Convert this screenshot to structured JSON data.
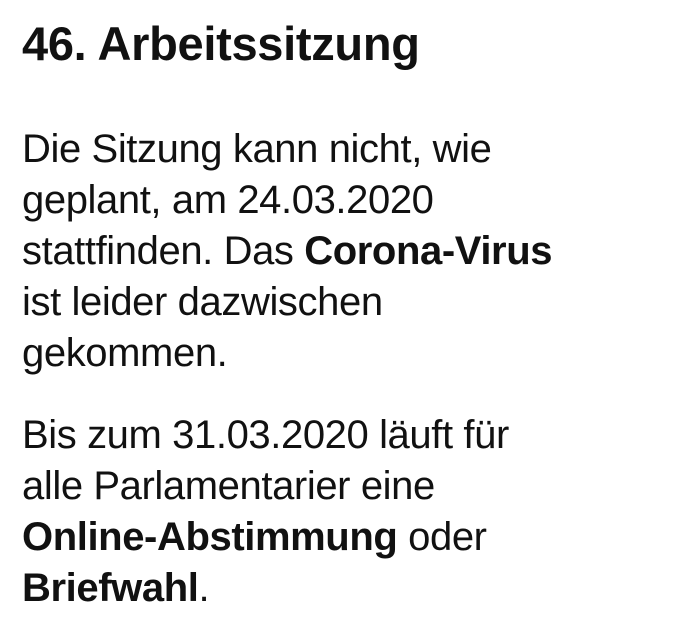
{
  "title": "46. Arbeitssitzung",
  "paragraph1": {
    "l1": "Die Sitzung kann nicht, wie",
    "l2": "geplant, am 24.03.2020",
    "l3a": "stattfinden. Das ",
    "l3b": "Corona-Virus",
    "l4": "ist leider dazwischen",
    "l5": "gekommen."
  },
  "paragraph2": {
    "l1": "Bis zum 31.03.2020 läuft für",
    "l2": "alle Parlamentarier eine",
    "l3a": "Online-Abstimmung",
    "l3b": " oder",
    "l4a": "Briefwahl",
    "l4b": "."
  }
}
